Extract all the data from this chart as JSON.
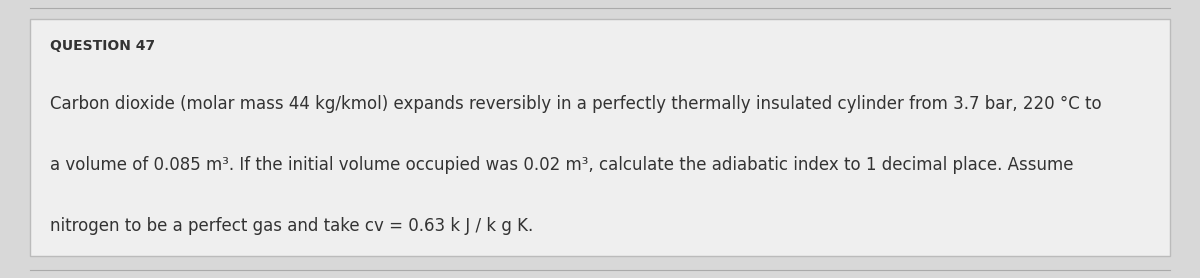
{
  "background_color": "#d8d8d8",
  "box_color": "#efefef",
  "box_edge_color": "#bbbbbb",
  "line_color": "#aaaaaa",
  "question_label": "QUESTION 47",
  "question_label_fontsize": 10,
  "line1": "Carbon dioxide (molar mass 44 kg/kmol) expands reversibly in a perfectly thermally insulated cylinder from 3.7 bar, 220 °C to",
  "line2": "a volume of 0.085 m³. If the initial volume occupied was 0.02 m³, calculate the adiabatic index to 1 decimal place. Assume",
  "line3": "nitrogen to be a perfect gas and take cv = 0.63 k J / k g K.",
  "body_fontsize": 12,
  "text_color": "#333333",
  "fig_width": 12.0,
  "fig_height": 2.78,
  "dpi": 100
}
